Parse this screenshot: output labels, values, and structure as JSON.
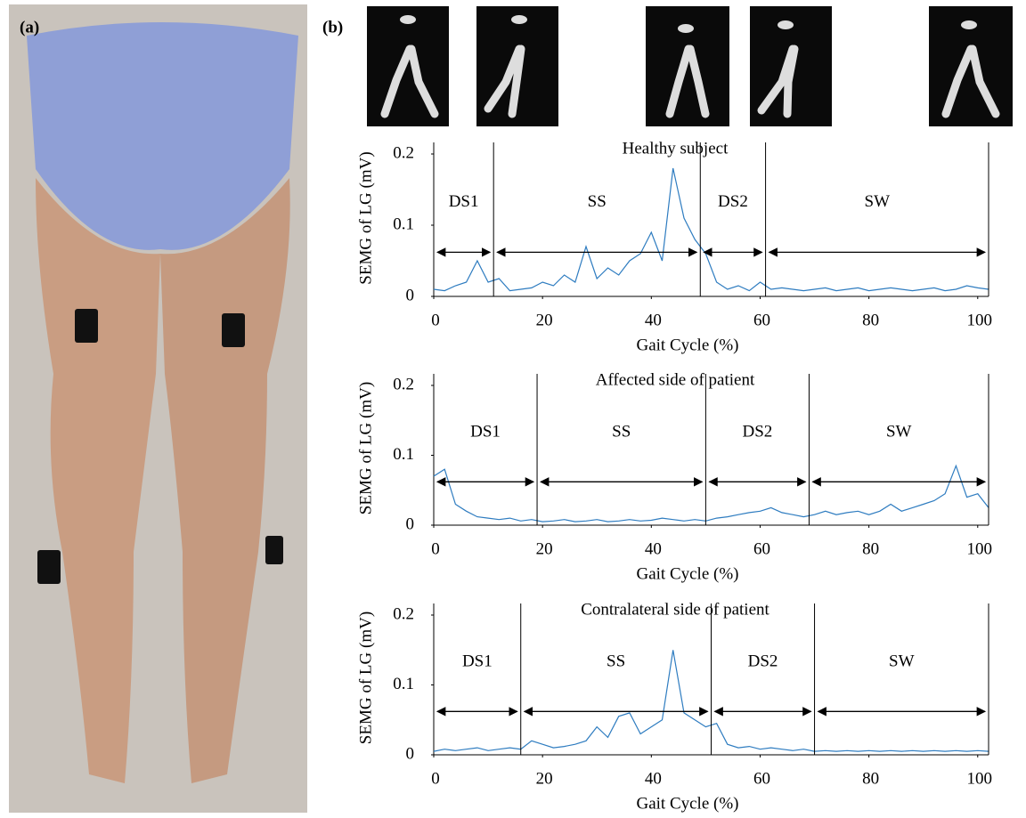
{
  "figure": {
    "panel_a": "(a)",
    "panel_b": "(b)"
  },
  "chart_data": [
    {
      "type": "line",
      "title": "Healthy subject",
      "xlabel": "Gait Cycle (%)",
      "ylabel": "SEMG of LG (mV)",
      "color": "#2e7cc0",
      "xlim": [
        0,
        102
      ],
      "ylim": [
        0,
        0.2
      ],
      "xticks": [
        0,
        20,
        40,
        60,
        80,
        100
      ],
      "yticks": [
        0,
        0.1,
        0.2
      ],
      "boundaries": [
        0,
        11,
        49,
        61,
        102
      ],
      "phase_labels": [
        "DS1",
        "SS",
        "DS2",
        "SW"
      ],
      "x": [
        0,
        2,
        4,
        6,
        8,
        10,
        12,
        14,
        16,
        18,
        20,
        22,
        24,
        26,
        28,
        30,
        32,
        34,
        36,
        38,
        40,
        42,
        44,
        46,
        48,
        50,
        52,
        54,
        56,
        58,
        60,
        62,
        64,
        66,
        68,
        70,
        72,
        74,
        76,
        78,
        80,
        82,
        84,
        86,
        88,
        90,
        92,
        94,
        96,
        98,
        100,
        102
      ],
      "values": [
        0.01,
        0.008,
        0.015,
        0.02,
        0.05,
        0.02,
        0.025,
        0.008,
        0.01,
        0.012,
        0.02,
        0.015,
        0.03,
        0.02,
        0.07,
        0.025,
        0.04,
        0.03,
        0.05,
        0.06,
        0.09,
        0.05,
        0.18,
        0.11,
        0.08,
        0.06,
        0.02,
        0.01,
        0.015,
        0.008,
        0.02,
        0.01,
        0.012,
        0.01,
        0.008,
        0.01,
        0.012,
        0.008,
        0.01,
        0.012,
        0.008,
        0.01,
        0.012,
        0.01,
        0.008,
        0.01,
        0.012,
        0.008,
        0.01,
        0.015,
        0.012,
        0.01
      ]
    },
    {
      "type": "line",
      "title": "Affected side of patient",
      "xlabel": "Gait Cycle (%)",
      "ylabel": "SEMG of LG (mV)",
      "color": "#2e7cc0",
      "xlim": [
        0,
        102
      ],
      "ylim": [
        0,
        0.2
      ],
      "xticks": [
        0,
        20,
        40,
        60,
        80,
        100
      ],
      "yticks": [
        0,
        0.1,
        0.2
      ],
      "boundaries": [
        0,
        19,
        50,
        69,
        102
      ],
      "phase_labels": [
        "DS1",
        "SS",
        "DS2",
        "SW"
      ],
      "x": [
        0,
        2,
        4,
        6,
        8,
        10,
        12,
        14,
        16,
        18,
        20,
        22,
        24,
        26,
        28,
        30,
        32,
        34,
        36,
        38,
        40,
        42,
        44,
        46,
        48,
        50,
        52,
        54,
        56,
        58,
        60,
        62,
        64,
        66,
        68,
        70,
        72,
        74,
        76,
        78,
        80,
        82,
        84,
        86,
        88,
        90,
        92,
        94,
        96,
        98,
        100,
        102
      ],
      "values": [
        0.07,
        0.08,
        0.03,
        0.02,
        0.012,
        0.01,
        0.008,
        0.01,
        0.006,
        0.008,
        0.005,
        0.006,
        0.008,
        0.005,
        0.006,
        0.008,
        0.005,
        0.006,
        0.008,
        0.006,
        0.007,
        0.01,
        0.008,
        0.006,
        0.008,
        0.006,
        0.01,
        0.012,
        0.015,
        0.018,
        0.02,
        0.025,
        0.018,
        0.015,
        0.012,
        0.015,
        0.02,
        0.015,
        0.018,
        0.02,
        0.015,
        0.02,
        0.03,
        0.02,
        0.025,
        0.03,
        0.035,
        0.045,
        0.085,
        0.04,
        0.045,
        0.025
      ]
    },
    {
      "type": "line",
      "title": "Contralateral side of patient",
      "xlabel": "Gait Cycle (%)",
      "ylabel": "SEMG of LG (mV)",
      "color": "#2e7cc0",
      "xlim": [
        0,
        102
      ],
      "ylim": [
        0,
        0.2
      ],
      "xticks": [
        0,
        20,
        40,
        60,
        80,
        100
      ],
      "yticks": [
        0,
        0.1,
        0.2
      ],
      "boundaries": [
        0,
        16,
        51,
        70,
        102
      ],
      "phase_labels": [
        "DS1",
        "SS",
        "DS2",
        "SW"
      ],
      "x": [
        0,
        2,
        4,
        6,
        8,
        10,
        12,
        14,
        16,
        18,
        20,
        22,
        24,
        26,
        28,
        30,
        32,
        34,
        36,
        38,
        40,
        42,
        44,
        46,
        48,
        50,
        52,
        54,
        56,
        58,
        60,
        62,
        64,
        66,
        68,
        70,
        72,
        74,
        76,
        78,
        80,
        82,
        84,
        86,
        88,
        90,
        92,
        94,
        96,
        98,
        100,
        102
      ],
      "values": [
        0.005,
        0.008,
        0.006,
        0.008,
        0.01,
        0.006,
        0.008,
        0.01,
        0.008,
        0.02,
        0.015,
        0.01,
        0.012,
        0.015,
        0.02,
        0.04,
        0.025,
        0.055,
        0.06,
        0.03,
        0.04,
        0.05,
        0.15,
        0.06,
        0.05,
        0.04,
        0.045,
        0.015,
        0.01,
        0.012,
        0.008,
        0.01,
        0.008,
        0.006,
        0.008,
        0.005,
        0.006,
        0.005,
        0.006,
        0.005,
        0.006,
        0.005,
        0.006,
        0.005,
        0.006,
        0.005,
        0.006,
        0.005,
        0.006,
        0.005,
        0.006,
        0.005
      ]
    }
  ]
}
